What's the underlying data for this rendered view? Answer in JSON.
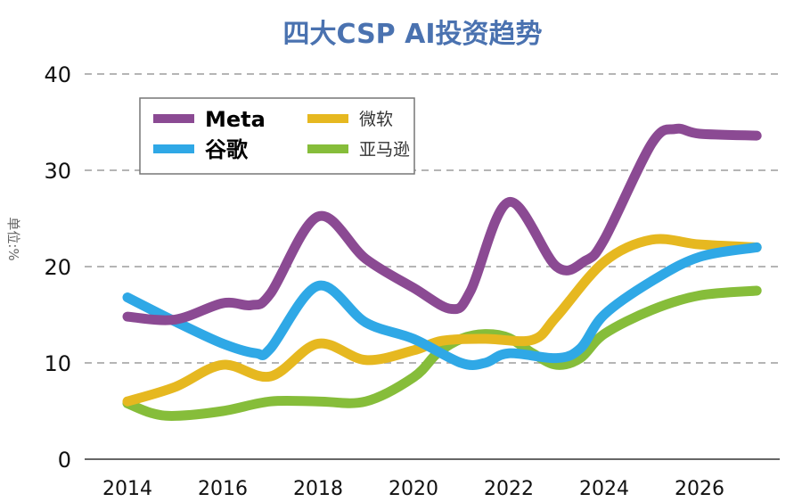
{
  "chart_data": {
    "type": "line",
    "title": "四大CSP AI投资趋势",
    "xlabel": "",
    "ylabel": "单位:%",
    "xlim": [
      2013.4,
      2027.6
    ],
    "ylim": [
      0,
      40
    ],
    "xticks": [
      2014,
      2016,
      2018,
      2020,
      2022,
      2024,
      2026
    ],
    "yticks": [
      0,
      10,
      20,
      30,
      40
    ],
    "grid": "horizontal dashed",
    "legend_position": "top-left",
    "colors": {
      "title": "#4a72b0",
      "grid": "#b5b5b5"
    },
    "series": [
      {
        "name": "Meta",
        "color": "#8b4a93",
        "x": [
          2014,
          2015,
          2016,
          2016.6,
          2017,
          2018,
          2019,
          2020,
          2020.8,
          2021.2,
          2022,
          2023,
          2023.6,
          2024,
          2025,
          2025.5,
          2026,
          2027.2
        ],
        "y": [
          14.8,
          14.5,
          16.2,
          16.0,
          17.2,
          25.2,
          20.8,
          17.8,
          15.6,
          17.5,
          26.7,
          20.0,
          20.6,
          22.8,
          32.8,
          34.3,
          33.8,
          33.6
        ]
      },
      {
        "name": "微软",
        "color": "#e6b820",
        "x": [
          2014,
          2015,
          2016,
          2017,
          2018,
          2019,
          2020,
          2020.6,
          2021.5,
          2022.5,
          2023,
          2024,
          2025,
          2026,
          2027.2
        ],
        "y": [
          6.0,
          7.5,
          9.8,
          8.6,
          12.0,
          10.3,
          11.3,
          12.3,
          12.5,
          12.4,
          14.8,
          20.5,
          22.8,
          22.3,
          22.0
        ]
      },
      {
        "name": "谷歌",
        "color": "#2fa8e6",
        "x": [
          2014,
          2015,
          2016,
          2016.7,
          2017,
          2018,
          2019,
          2020,
          2021,
          2021.5,
          2022,
          2023,
          2023.5,
          2024,
          2025,
          2026,
          2027.2
        ],
        "y": [
          16.8,
          14.3,
          12.0,
          11.0,
          11.5,
          18.0,
          14.2,
          12.5,
          10.0,
          10.0,
          11.0,
          10.5,
          11.5,
          15.0,
          18.5,
          21.0,
          22.0
        ]
      },
      {
        "name": "亚马逊",
        "color": "#86bd3a",
        "x": [
          2014,
          2014.5,
          2015,
          2016,
          2017,
          2018,
          2019,
          2020,
          2020.5,
          2021,
          2021.5,
          2022,
          2022.5,
          2023,
          2023.5,
          2024,
          2025,
          2026,
          2027.2
        ],
        "y": [
          5.8,
          4.8,
          4.5,
          5.0,
          6.0,
          6.0,
          6.0,
          8.5,
          11.0,
          12.5,
          13.0,
          12.6,
          11.0,
          9.8,
          10.5,
          13.0,
          15.5,
          17.0,
          17.5
        ]
      }
    ]
  }
}
